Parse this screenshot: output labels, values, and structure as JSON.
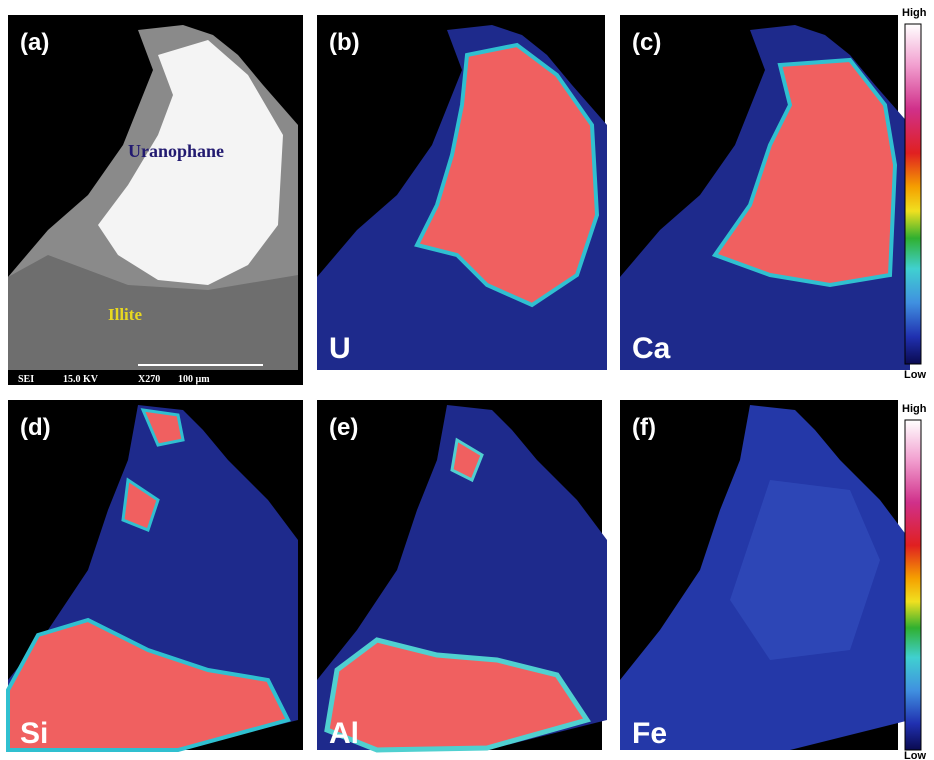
{
  "panels": [
    {
      "label": "(a)",
      "annotations": [
        "Uranophane",
        "Illite"
      ],
      "caption": [
        "SEI",
        "15.0 KV",
        "X270",
        "100 µm"
      ]
    },
    {
      "label": "(b)",
      "element": "U"
    },
    {
      "label": "(c)",
      "element": "Ca"
    },
    {
      "label": "(d)",
      "element": "Si"
    },
    {
      "label": "(e)",
      "element": "Al"
    },
    {
      "label": "(f)",
      "element": "Fe"
    }
  ],
  "colorbars": [
    {
      "top": "High",
      "bottom": "Low"
    },
    {
      "top": "High",
      "bottom": "Low"
    }
  ]
}
